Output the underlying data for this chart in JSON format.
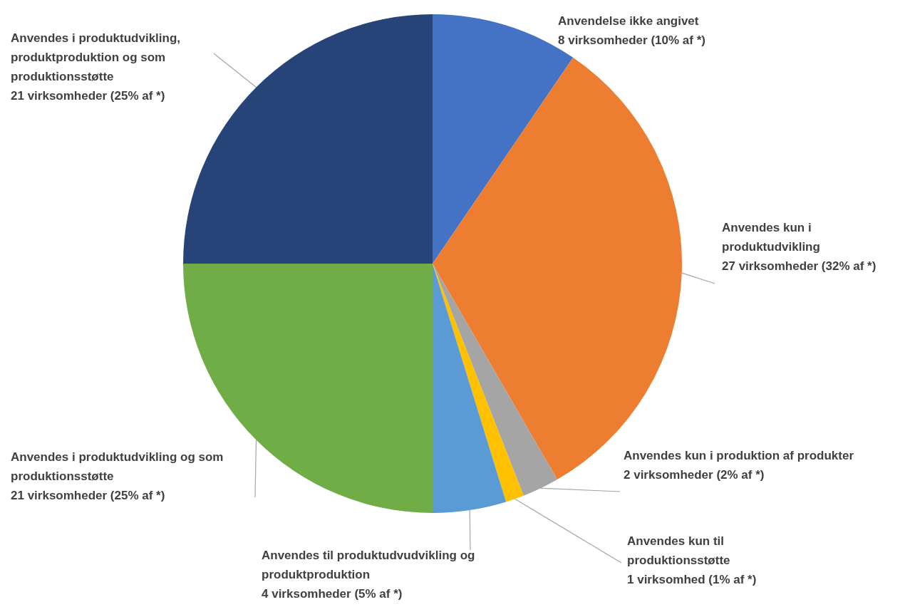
{
  "chart_data": {
    "type": "pie",
    "categories": [
      "Anvendelse ikke angivet",
      "Anvendes kun i\nproduktudvikling",
      "Anvendes kun i produktion af produkter",
      "Anvendes kun til\nproduktionsstøtte",
      "Anvendes til produktudvudvikling og\nproduktproduktion",
      "Anvendes i produktudvikling og som\nproduktionsstøtte",
      "Anvendes i produktudvikling,\nproduktproduktion og som\nproduktionsstøtte"
    ],
    "values": [
      8,
      27,
      2,
      1,
      4,
      21,
      21
    ],
    "value_labels": [
      "8 virksomheder (10% af *)",
      "27 virksomheder (32% af *)",
      "2 virksomheder (2% af *)",
      "1 virksomhed (1% af *)",
      "4 virksomheder (5% af *)",
      "21 virksomheder (25% af *)",
      "21 virksomheder (25% af *)"
    ],
    "colors": [
      "#4472c4",
      "#ed7d31",
      "#a5a5a5",
      "#ffc000",
      "#5b9bd5",
      "#70ad47",
      "#264478"
    ],
    "legend": false
  }
}
